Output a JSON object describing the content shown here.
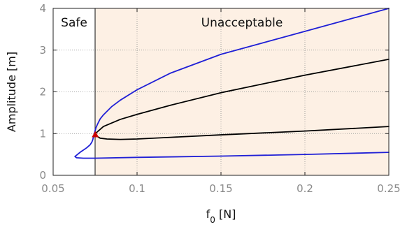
{
  "chart_data": {
    "type": "line",
    "xlabel": "f",
    "xlabel_sub": "0",
    "xlabel_unit": " [N]",
    "ylabel": "Amplitude [m]",
    "xlim": [
      0.05,
      0.25
    ],
    "ylim": [
      0,
      4
    ],
    "x_ticks": [
      {
        "value": 0.05,
        "label": "0.05"
      },
      {
        "value": 0.1,
        "label": "0.1"
      },
      {
        "value": 0.15,
        "label": "0.15"
      },
      {
        "value": 0.2,
        "label": "0.2"
      },
      {
        "value": 0.25,
        "label": "0.25"
      }
    ],
    "y_ticks": [
      {
        "value": 0,
        "label": "0"
      },
      {
        "value": 1,
        "label": "1"
      },
      {
        "value": 2,
        "label": "2"
      },
      {
        "value": 3,
        "label": "3"
      },
      {
        "value": 4,
        "label": "4"
      }
    ],
    "grid": true,
    "threshold_x": 0.075,
    "regions": [
      {
        "label": "Safe",
        "from": 0.05,
        "to": 0.075,
        "color": "#ffffff"
      },
      {
        "label": "Unacceptable",
        "from": 0.075,
        "to": 0.25,
        "color": "#fdf0e4"
      }
    ],
    "series": [
      {
        "color": "#1f1fd6",
        "x": [
          0.25,
          0.2,
          0.15,
          0.12,
          0.1,
          0.09,
          0.085,
          0.08,
          0.078,
          0.0765,
          0.0755,
          0.0751
        ],
        "y": [
          4.0,
          3.45,
          2.9,
          2.45,
          2.05,
          1.8,
          1.65,
          1.45,
          1.35,
          1.23,
          1.14,
          1.08
        ]
      },
      {
        "color": "#1f1fd6",
        "x": [
          0.0751,
          0.0745,
          0.074,
          0.0736,
          0.073,
          0.072,
          0.07,
          0.066,
          0.063,
          0.064,
          0.068,
          0.075,
          0.1,
          0.15,
          0.2,
          0.25
        ],
        "y": [
          1.08,
          0.99,
          0.92,
          0.85,
          0.79,
          0.73,
          0.66,
          0.55,
          0.45,
          0.42,
          0.41,
          0.41,
          0.43,
          0.46,
          0.5,
          0.55
        ]
      },
      {
        "color": "#000000",
        "x": [
          0.0751,
          0.08,
          0.09,
          0.1,
          0.12,
          0.15,
          0.2,
          0.25
        ],
        "y": [
          1.0,
          1.17,
          1.34,
          1.46,
          1.68,
          1.98,
          2.4,
          2.78
        ]
      },
      {
        "color": "#000000",
        "x": [
          0.0751,
          0.078,
          0.082,
          0.09,
          0.1,
          0.12,
          0.15,
          0.2,
          0.25
        ],
        "y": [
          0.96,
          0.89,
          0.87,
          0.86,
          0.87,
          0.91,
          0.97,
          1.06,
          1.17
        ]
      }
    ],
    "marker": {
      "x": 0.0751,
      "y": 0.98,
      "shape": "triangle",
      "color": "#cc0000"
    }
  }
}
